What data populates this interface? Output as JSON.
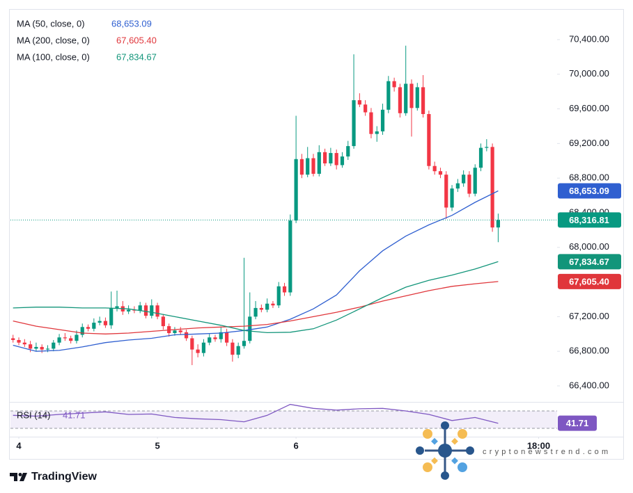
{
  "chart_data": {
    "type": "candlestick",
    "xlim": [
      -1.45,
      93.2
    ],
    "xticks": [
      {
        "value": 0,
        "label": "4"
      },
      {
        "value": 24,
        "label": "5"
      },
      {
        "value": 48,
        "label": "6"
      },
      {
        "value": 90,
        "label": "18:00"
      }
    ],
    "ylim": [
      66215,
      70737
    ],
    "yticks": [
      {
        "value": 66400,
        "label": "66,400.00"
      },
      {
        "value": 66800,
        "label": "66,800.00"
      },
      {
        "value": 67200,
        "label": "67,200.00"
      },
      {
        "value": 67600,
        "label": "67,600.00"
      },
      {
        "value": 68000,
        "label": "68,000.00"
      },
      {
        "value": 68400,
        "label": "68,400.00"
      },
      {
        "value": 68800,
        "label": "68,800.00"
      },
      {
        "value": 69200,
        "label": "69,200.00"
      },
      {
        "value": 69600,
        "label": "69,600.00"
      },
      {
        "value": 70000,
        "label": "70,000.00"
      },
      {
        "value": 70400,
        "label": "70,400.00"
      }
    ],
    "grid": false,
    "up_color": "#089981",
    "down_color": "#f23645",
    "x": [
      -1,
      0,
      1,
      2,
      3,
      4,
      5,
      6,
      7,
      8,
      9,
      10,
      11,
      12,
      13,
      14,
      15,
      16,
      17,
      18,
      19,
      20,
      21,
      22,
      23,
      24,
      25,
      26,
      27,
      28,
      29,
      30,
      31,
      32,
      33,
      34,
      35,
      36,
      37,
      38,
      39,
      40,
      41,
      42,
      43,
      44,
      45,
      46,
      47,
      48,
      49,
      50,
      51,
      52,
      53,
      54,
      55,
      56,
      57,
      58,
      59,
      60,
      61,
      62,
      63,
      64,
      65,
      66,
      67,
      68,
      69,
      70,
      71,
      72,
      73,
      74,
      75,
      76,
      77,
      78,
      79,
      80,
      81,
      82,
      83
    ],
    "open": [
      66950,
      66930,
      66900,
      66880,
      66830,
      66850,
      66820,
      66830,
      66900,
      66960,
      66950,
      66920,
      66990,
      67080,
      67060,
      67130,
      67150,
      67100,
      67300,
      67320,
      67260,
      67280,
      67270,
      67330,
      67210,
      67330,
      67200,
      67090,
      67010,
      67040,
      67020,
      66950,
      66820,
      66780,
      66900,
      66960,
      66940,
      67020,
      66900,
      66760,
      66860,
      66920,
      67200,
      67300,
      67280,
      67350,
      67330,
      67550,
      67480,
      68310,
      69020,
      68840,
      69030,
      68850,
      69100,
      68970,
      69090,
      68950,
      69050,
      69170,
      69700,
      69650,
      69560,
      69310,
      69340,
      69590,
      69920,
      69850,
      69550,
      69890,
      69610,
      69850,
      69540,
      68940,
      68880,
      68840,
      68460,
      68680,
      68740,
      68840,
      68620,
      68920,
      69150,
      69160,
      68230
    ],
    "high": [
      66990,
      66960,
      66940,
      66920,
      66900,
      66880,
      66870,
      66930,
      67000,
      67010,
      66980,
      67040,
      67120,
      67110,
      67180,
      67200,
      67190,
      67490,
      67500,
      67380,
      67330,
      67320,
      67370,
      67360,
      67400,
      67360,
      67230,
      67120,
      67080,
      67080,
      67050,
      66980,
      66880,
      66940,
      67000,
      66990,
      67080,
      67060,
      66940,
      66900,
      67880,
      67480,
      67380,
      67340,
      67410,
      67380,
      67600,
      67590,
      68380,
      69520,
      69080,
      69160,
      69080,
      69180,
      69140,
      69150,
      69130,
      69100,
      69230,
      70230,
      69780,
      69700,
      69610,
      69400,
      69660,
      69980,
      69960,
      69890,
      70330,
      69940,
      69900,
      69990,
      69580,
      68990,
      68920,
      68880,
      68720,
      68790,
      68890,
      68880,
      68960,
      69200,
      69250,
      69200,
      68390
    ],
    "low": [
      66900,
      66870,
      66850,
      66790,
      66800,
      66780,
      66790,
      66800,
      66870,
      66920,
      66890,
      66890,
      66960,
      67030,
      67030,
      67100,
      67070,
      67060,
      67260,
      67220,
      67230,
      67240,
      67240,
      67180,
      67180,
      67170,
      67050,
      66970,
      66980,
      66990,
      66920,
      66640,
      66730,
      66740,
      66870,
      66910,
      66900,
      66860,
      66680,
      66720,
      66830,
      66890,
      67170,
      67250,
      67250,
      67300,
      67300,
      67440,
      67440,
      68280,
      68800,
      68810,
      68820,
      68820,
      68940,
      68940,
      68900,
      68920,
      69010,
      69140,
      69620,
      69520,
      69260,
      69220,
      69300,
      69550,
      69800,
      69500,
      69520,
      69280,
      69580,
      69500,
      68900,
      68840,
      68800,
      68330,
      68420,
      68640,
      68700,
      68580,
      68590,
      68880,
      69110,
      68180,
      68060
    ],
    "close": [
      66930,
      66900,
      66880,
      66830,
      66850,
      66820,
      66830,
      66900,
      66960,
      66950,
      66920,
      66990,
      67080,
      67060,
      67130,
      67150,
      67100,
      67300,
      67320,
      67260,
      67280,
      67270,
      67330,
      67210,
      67330,
      67200,
      67090,
      67010,
      67040,
      67020,
      66950,
      66820,
      66780,
      66900,
      66960,
      66940,
      67020,
      66900,
      66760,
      66860,
      66920,
      67200,
      67300,
      67280,
      67350,
      67330,
      67550,
      67480,
      68310,
      69020,
      68840,
      69030,
      68850,
      69100,
      68970,
      69090,
      68950,
      69050,
      69170,
      69700,
      69650,
      69560,
      69310,
      69340,
      69590,
      69920,
      69850,
      69550,
      69890,
      69610,
      69850,
      69540,
      68940,
      68880,
      68840,
      68460,
      68680,
      68740,
      68840,
      68620,
      68920,
      69150,
      69160,
      68230,
      68316.81
    ],
    "last_price": {
      "value": 68316.81,
      "label": "68,316.81"
    },
    "series": [
      {
        "name": "MA (50, close, 0)",
        "color": "#2f5fd0",
        "x": [
          -1,
          3,
          7,
          11,
          15,
          19,
          23,
          27,
          31,
          35,
          39,
          43,
          47,
          51,
          55,
          59,
          63,
          67,
          71,
          75,
          79,
          83
        ],
        "values": [
          66870,
          66800,
          66810,
          66850,
          66900,
          66930,
          66950,
          66990,
          67000,
          67010,
          67040,
          67080,
          67170,
          67290,
          67450,
          67730,
          67960,
          68130,
          68260,
          68370,
          68520,
          68653.09
        ],
        "last_value": {
          "value": 68653.09,
          "label": "68,653.09"
        }
      },
      {
        "name": "MA (200, close, 0)",
        "color": "#e0363b",
        "x": [
          -1,
          3,
          7,
          11,
          15,
          19,
          23,
          27,
          31,
          35,
          39,
          43,
          47,
          51,
          55,
          59,
          63,
          67,
          71,
          75,
          79,
          83
        ],
        "values": [
          67150,
          67090,
          67050,
          67010,
          67000,
          67010,
          67030,
          67050,
          67070,
          67080,
          67090,
          67110,
          67150,
          67200,
          67250,
          67310,
          67380,
          67440,
          67500,
          67550,
          67580,
          67605.4
        ],
        "last_value": {
          "value": 67605.4,
          "label": "67,605.40"
        }
      },
      {
        "name": "MA (100, close, 0)",
        "color": "#12957a",
        "x": [
          -1,
          3,
          7,
          11,
          15,
          19,
          23,
          27,
          31,
          35,
          39,
          43,
          47,
          51,
          55,
          59,
          63,
          67,
          71,
          75,
          79,
          83
        ],
        "values": [
          67300,
          67310,
          67310,
          67300,
          67300,
          67290,
          67250,
          67200,
          67150,
          67100,
          67040,
          67015,
          67020,
          67060,
          67160,
          67290,
          67420,
          67540,
          67620,
          67680,
          67750,
          67834.67
        ],
        "last_value": {
          "value": 67834.67,
          "label": "67,834.67"
        }
      }
    ],
    "rsi": {
      "name": "RSI (14)",
      "color": "#7e57c2",
      "ylim": [
        10.8,
        87.6
      ],
      "levels": [
        30,
        70
      ],
      "x": [
        -1,
        3,
        7,
        11,
        15,
        19,
        23,
        27,
        31,
        35,
        39,
        43,
        47,
        51,
        55,
        59,
        63,
        67,
        71,
        75,
        79,
        83
      ],
      "values": [
        60,
        58,
        62,
        65,
        68,
        62,
        63,
        55,
        52,
        50,
        45,
        60,
        85,
        76,
        72,
        75,
        76,
        70,
        62,
        48,
        55,
        41.71
      ],
      "last_value": {
        "value": 41.71,
        "label": "41.71"
      }
    },
    "watermark": "cryptonewstrend.com",
    "footer": "TradingView"
  }
}
